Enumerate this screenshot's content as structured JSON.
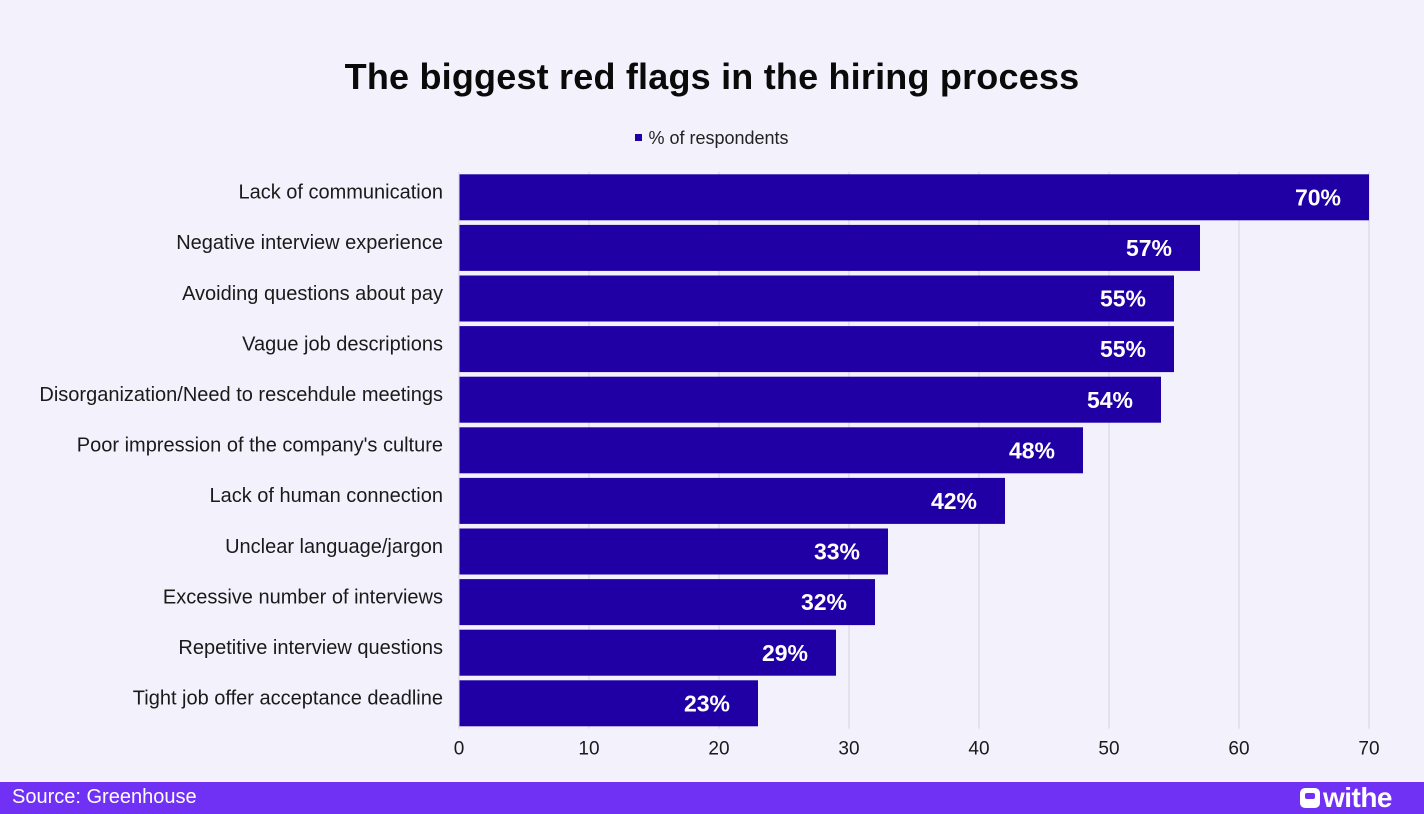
{
  "colors": {
    "bar": "#2000a5",
    "grid": "#d7d4e3",
    "background": "#f3f1fc",
    "footer": "#7031f5",
    "bar_label": "#ffffff"
  },
  "footer": {
    "source": "Source: Greenhouse",
    "brand": "withe",
    "brand_icon": "withe-logo-icon"
  },
  "chart_data": {
    "type": "bar",
    "orientation": "horizontal",
    "title": "The biggest red flags in the hiring process",
    "xlabel": "",
    "ylabel": "",
    "xlim": [
      0,
      70
    ],
    "xticks": [
      0,
      10,
      20,
      30,
      40,
      50,
      60,
      70
    ],
    "grid": true,
    "legend_position": "top-center",
    "categories": [
      "Lack of communication",
      "Negative interview experience",
      "Avoiding questions about pay",
      "Vague job descriptions",
      "Disorganization/Need to rescehdule meetings",
      "Poor impression of the company's culture",
      "Lack of human connection",
      "Unclear language/jargon",
      "Excessive number of interviews",
      "Repetitive interview questions",
      "Tight job offer acceptance deadline"
    ],
    "series": [
      {
        "name": "% of respondents",
        "values": [
          70,
          57,
          55,
          55,
          54,
          48,
          42,
          33,
          32,
          29,
          23
        ],
        "labels": [
          "70%",
          "57%",
          "55%",
          "55%",
          "54%",
          "48%",
          "42%",
          "33%",
          "32%",
          "29%",
          "23%"
        ]
      }
    ]
  }
}
